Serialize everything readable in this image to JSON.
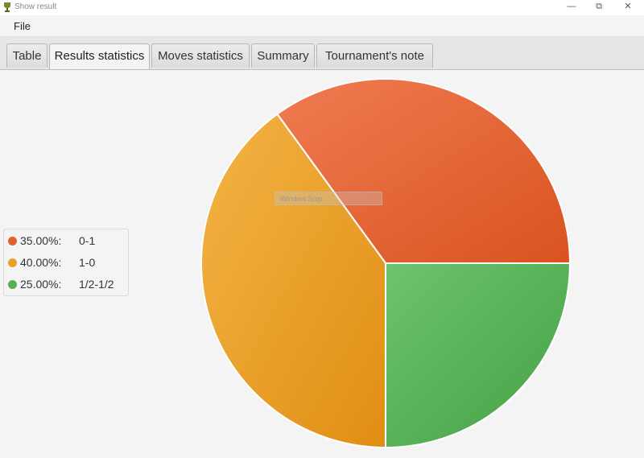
{
  "window": {
    "title": "Show result",
    "minimize": "—",
    "restore": "⧉",
    "close": "✕"
  },
  "menu": {
    "file": "File"
  },
  "tabs": [
    {
      "label": "Table",
      "active": false
    },
    {
      "label": "Results statistics",
      "active": true
    },
    {
      "label": "Moves statistics",
      "active": false
    },
    {
      "label": "Summary",
      "active": false
    },
    {
      "label": "Tournament's note",
      "active": false
    }
  ],
  "overlay": {
    "text": "Window Snip"
  },
  "chart_data": {
    "type": "pie",
    "title": "",
    "legend_position": "left",
    "slices": [
      {
        "percent": "35.00%:",
        "label": "0-1",
        "value": 35,
        "color": "#e0622e"
      },
      {
        "percent": "40.00%:",
        "label": "1-0",
        "value": 40,
        "color": "#e9a128"
      },
      {
        "percent": "25.00%:",
        "label": "1/2-1/2",
        "value": 25,
        "color": "#57b057"
      }
    ]
  }
}
